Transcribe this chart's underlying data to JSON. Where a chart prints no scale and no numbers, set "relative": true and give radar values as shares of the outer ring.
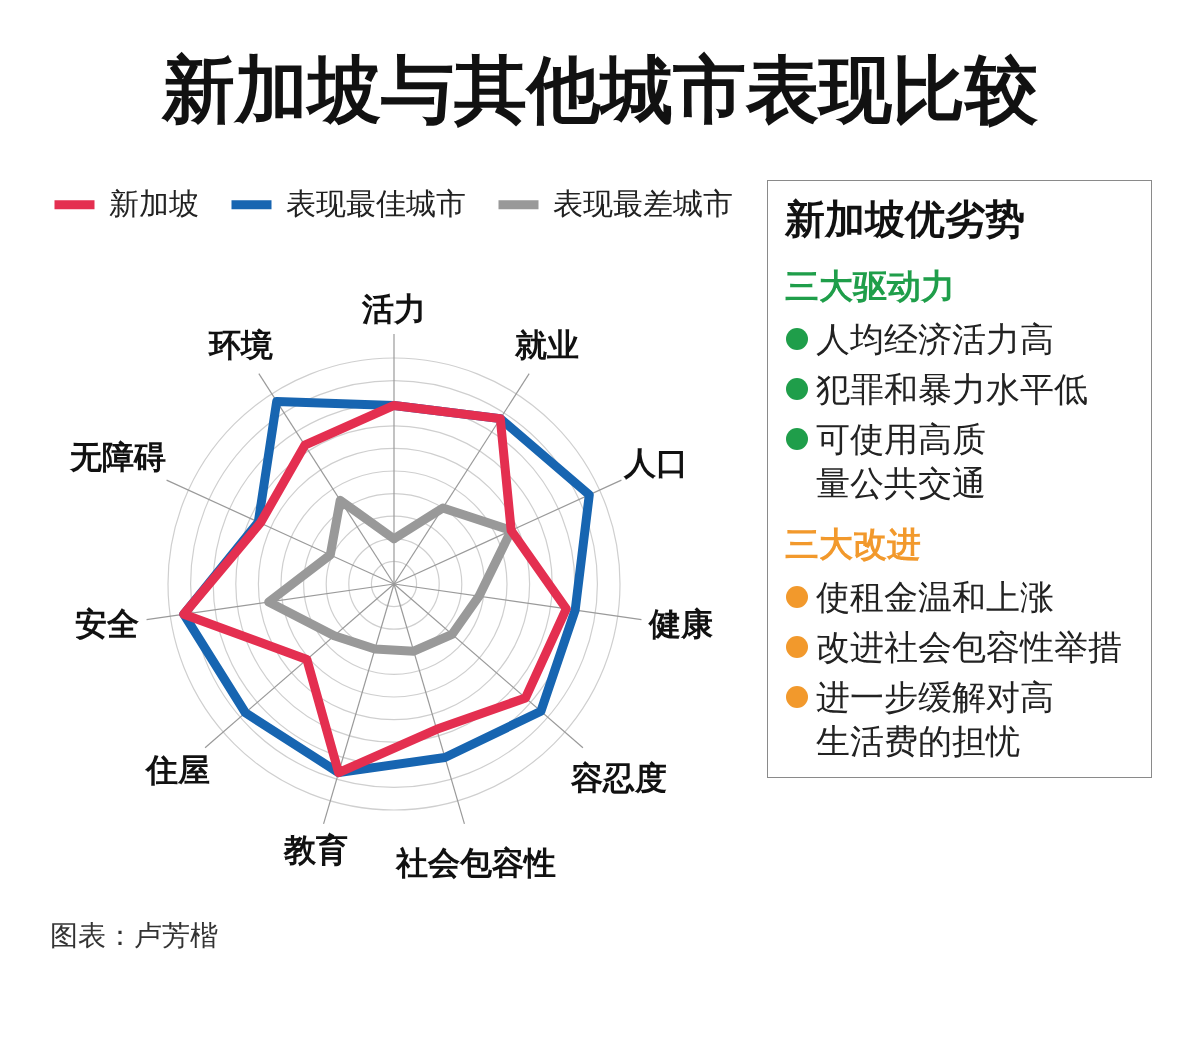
{
  "chart_data": [
    {
      "type": "radar",
      "title": "新加坡与其他城市表现比较",
      "categories": [
        "活力",
        "就业",
        "人口",
        "健康",
        "容忍度",
        "社会包容性",
        "教育",
        "住屋",
        "安全",
        "无障碍",
        "环境"
      ],
      "relative": true,
      "series": [
        {
          "name": "新加坡",
          "color": "#e42f50",
          "values": [
            0.79,
            0.87,
            0.57,
            0.77,
            0.77,
            0.67,
            0.87,
            0.51,
            0.94,
            0.65,
            0.73
          ]
        },
        {
          "name": "表现最佳城市",
          "color": "#1765b1",
          "values": [
            0.79,
            0.87,
            0.95,
            0.81,
            0.86,
            0.8,
            0.87,
            0.87,
            0.94,
            0.66,
            0.96
          ]
        },
        {
          "name": "表现最差城市",
          "color": "#999999",
          "values": [
            0.2,
            0.4,
            0.57,
            0.38,
            0.34,
            0.31,
            0.3,
            0.35,
            0.56,
            0.31,
            0.44
          ]
        }
      ],
      "grid": true,
      "legend": "top left",
      "annotations": [
        "图表：卢芳楷"
      ]
    },
    {
      "type": "other",
      "title": "新加坡优劣势",
      "annotations": [
        "三大驱动力",
        "三大改进"
      ],
      "categories": [
        "人均经济活力高",
        "犯罪和暴力水平低",
        "可使用高质量公共交通",
        "使租金温和上涨",
        "改进社会包容性举措",
        "进一步缓解对高生活费的担忧"
      ],
      "colors": [
        "#1f9e4a",
        "#1f9e4a",
        "#1f9e4a",
        "#f2992c",
        "#f2992c",
        "#f2992c"
      ]
    }
  ]
}
